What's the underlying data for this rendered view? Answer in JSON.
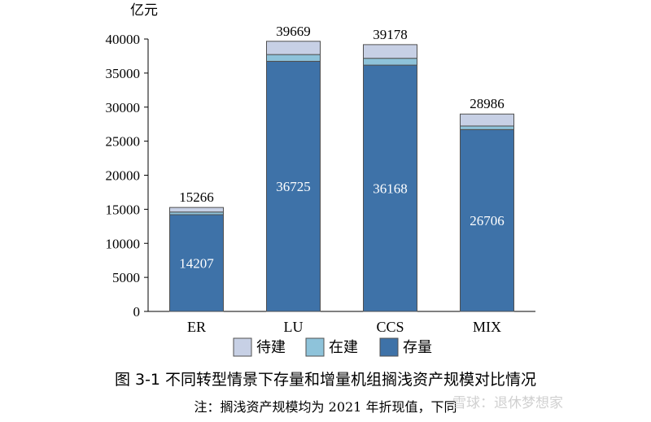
{
  "chart_data": {
    "type": "bar",
    "stacked": true,
    "unit": "亿元",
    "categories": [
      "ER",
      "LU",
      "CCS",
      "MIX"
    ],
    "series": [
      {
        "name": "存量",
        "color": "#3e72a8",
        "values": [
          14207,
          36725,
          36168,
          26706
        ]
      },
      {
        "name": "在建",
        "color": "#8ec3da",
        "values": [
          389,
          994,
          1000,
          521
        ]
      },
      {
        "name": "待建",
        "color": "#c7d0e5",
        "values": [
          670,
          1950,
          2010,
          1759
        ]
      }
    ],
    "totals": [
      15266,
      39669,
      39178,
      28986
    ],
    "inbar_labels": [
      "14207",
      "36725",
      "36168",
      "26706"
    ],
    "total_labels": [
      "15266",
      "39669",
      "39178",
      "28986"
    ],
    "yticks": [
      "0",
      "5000",
      "10000",
      "15000",
      "20000",
      "25000",
      "30000",
      "35000",
      "40000"
    ],
    "ylim": [
      0,
      40000
    ],
    "legend": {
      "placement": "bottom",
      "order": [
        "待建",
        "在建",
        "存量"
      ]
    }
  },
  "caption": {
    "title": "图 3-1  不同转型情景下存量和增量机组搁浅资产规模对比情况",
    "note": "注：搁浅资产规模均为 2021 年折现值，下同"
  },
  "watermark": "雪球：退休梦想家"
}
